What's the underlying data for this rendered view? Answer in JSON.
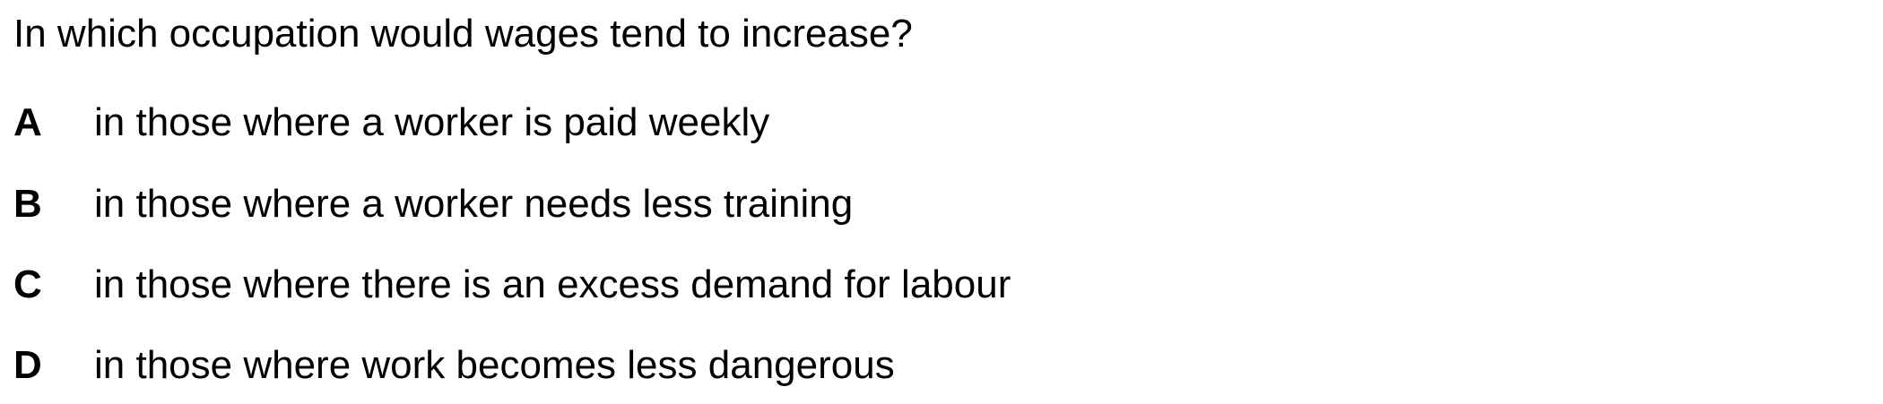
{
  "question": "In which occupation would wages tend to increase?",
  "options": [
    {
      "letter": "A",
      "text": "in those where a worker is paid weekly"
    },
    {
      "letter": "B",
      "text": "in those where a worker needs less training"
    },
    {
      "letter": "C",
      "text": "in those where there is an excess demand for labour"
    },
    {
      "letter": "D",
      "text": "in those where work becomes less dangerous"
    }
  ]
}
